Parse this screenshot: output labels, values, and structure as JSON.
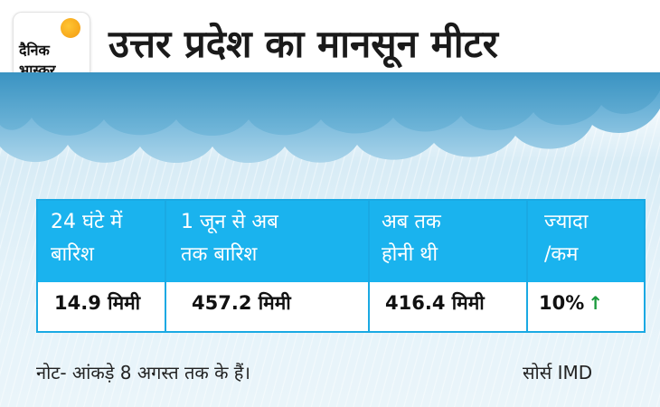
{
  "logo": {
    "line1": "दैनिक",
    "line2": "भास्कर"
  },
  "title": "उत्तर प्रदेश का मानसून मीटर",
  "table": {
    "headers": [
      {
        "line1": "24 घंटे में",
        "line2": "बारिश"
      },
      {
        "line1": "1 जून से अब",
        "line2": "तक बारिश"
      },
      {
        "line1": "अब तक",
        "line2": "होनी थी"
      },
      {
        "line1": "ज्यादा",
        "line2": "/कम"
      }
    ],
    "values": [
      "14.9 मिमी",
      "457.2 मिमी",
      "416.4 मिमी",
      "10%"
    ],
    "trend": "↑"
  },
  "note": "नोट- आंकड़े 8 अगस्त तक के हैं।",
  "source": "सोर्स IMD",
  "colors": {
    "header_bg": "#1ab3ee",
    "trend_up": "#1a9a3c"
  }
}
